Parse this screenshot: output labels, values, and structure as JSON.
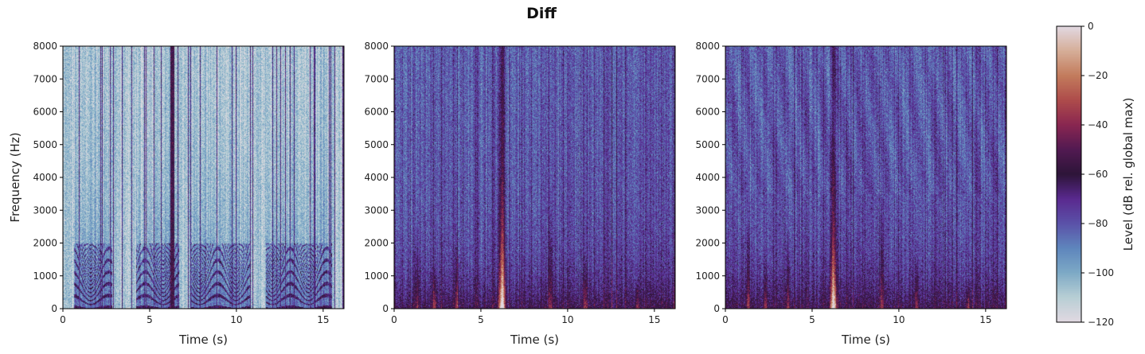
{
  "chart_data": [
    {
      "type": "heatmap",
      "title": "Diff",
      "xlabel": "Time (s)",
      "ylabel": "Frequency (Hz)",
      "xlim": [
        0,
        16.2
      ],
      "ylim": [
        0,
        8000
      ],
      "xticks": [
        0,
        5,
        10,
        15
      ],
      "yticks": [
        0,
        1000,
        2000,
        3000,
        4000,
        5000,
        6000,
        7000,
        8000
      ],
      "panels": [
        {
          "xlabel": "Time (s)",
          "ylabel": "Frequency (Hz)",
          "character": "light background with dark speech-like vertical stripes and harmonics"
        },
        {
          "xlabel": "Time (s)",
          "ylabel": "",
          "character": "dark purple with bright band near 6.2 s at low frequencies"
        },
        {
          "xlabel": "Time (s)",
          "ylabel": "",
          "character": "dark purple with bright band near 6.2 s at low frequencies"
        }
      ],
      "colorbar": {
        "label": "Level (dB rel. global max)",
        "range": [
          -120,
          0
        ],
        "ticks": [
          0,
          -20,
          -40,
          -60,
          -80,
          -100,
          -120
        ],
        "colormap": "twilight"
      }
    }
  ]
}
